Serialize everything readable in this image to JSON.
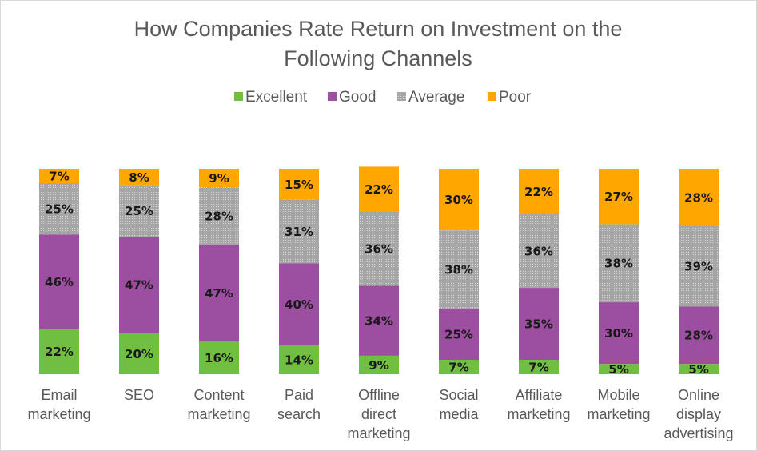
{
  "chart_data": {
    "type": "bar",
    "stacked": true,
    "title_lines": [
      "How Companies Rate Return on Investment on the",
      "Following Channels"
    ],
    "categories": [
      [
        "Email",
        "marketing"
      ],
      [
        "SEO"
      ],
      [
        "Content",
        "marketing"
      ],
      [
        "Paid",
        "search"
      ],
      [
        "Offline",
        "direct",
        "marketing"
      ],
      [
        "Social",
        "media"
      ],
      [
        "Affiliate",
        "marketing"
      ],
      [
        "Mobile",
        "marketing"
      ],
      [
        "Online",
        "display",
        "advertising"
      ]
    ],
    "series": [
      {
        "name": "Excellent",
        "color": "#70bf41",
        "values": [
          22,
          20,
          16,
          14,
          9,
          7,
          7,
          5,
          5
        ]
      },
      {
        "name": "Good",
        "color": "#9c4ea0",
        "values": [
          46,
          47,
          47,
          40,
          34,
          25,
          35,
          30,
          28
        ]
      },
      {
        "name": "Average",
        "color": "#a6a6a6",
        "values": [
          25,
          25,
          28,
          31,
          36,
          38,
          36,
          38,
          39
        ]
      },
      {
        "name": "Poor",
        "color": "#ffa600",
        "values": [
          7,
          8,
          9,
          15,
          22,
          30,
          22,
          27,
          28
        ]
      }
    ],
    "value_suffix": "%",
    "legend_position": "top",
    "ylim": [
      0,
      100
    ],
    "grid": false
  }
}
